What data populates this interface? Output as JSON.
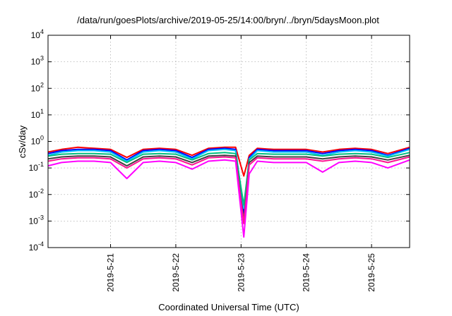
{
  "chart_data": {
    "type": "line",
    "title": "/data/run/goesPlots/archive/2019-05-25/14:00/bryn/../bryn/5daysMoon.plot",
    "xlabel": "Coordinated Universal Time (UTC)",
    "ylabel": "cSv/day",
    "yscale": "log",
    "ylim": [
      0.0001,
      10000
    ],
    "xlim": [
      "2019-05-20 01:00",
      "2019-05-25 14:00"
    ],
    "grid": true,
    "y_ticks": [
      {
        "base": "10",
        "exp": "-4"
      },
      {
        "base": "10",
        "exp": "-3"
      },
      {
        "base": "10",
        "exp": "-2"
      },
      {
        "base": "10",
        "exp": "-1"
      },
      {
        "base": "10",
        "exp": "0"
      },
      {
        "base": "10",
        "exp": "1"
      },
      {
        "base": "10",
        "exp": "2"
      },
      {
        "base": "10",
        "exp": "3"
      },
      {
        "base": "10",
        "exp": "4"
      }
    ],
    "x_ticks": [
      "2019-5-21",
      "2019-5-22",
      "2019-5-23",
      "2019-5-24",
      "2019-5-25"
    ],
    "x": [
      "2019-05-20 01:00",
      "2019-05-20 06:00",
      "2019-05-20 12:00",
      "2019-05-20 18:00",
      "2019-05-21 00:00",
      "2019-05-21 06:00",
      "2019-05-21 12:00",
      "2019-05-21 18:00",
      "2019-05-22 00:00",
      "2019-05-22 06:00",
      "2019-05-22 12:00",
      "2019-05-22 18:00",
      "2019-05-22 22:00",
      "2019-05-23 01:00",
      "2019-05-23 03:00",
      "2019-05-23 06:00",
      "2019-05-23 12:00",
      "2019-05-23 18:00",
      "2019-05-24 00:00",
      "2019-05-24 06:00",
      "2019-05-24 12:00",
      "2019-05-24 18:00",
      "2019-05-25 00:00",
      "2019-05-25 06:00",
      "2019-05-25 14:00"
    ],
    "series": [
      {
        "color": "#ff0000",
        "values": [
          0.4,
          0.5,
          0.6,
          0.55,
          0.5,
          0.25,
          0.5,
          0.55,
          0.5,
          0.3,
          0.55,
          0.6,
          0.6,
          0.05,
          0.3,
          0.55,
          0.5,
          0.5,
          0.5,
          0.4,
          0.5,
          0.55,
          0.5,
          0.35,
          0.6
        ]
      },
      {
        "color": "#0000ff",
        "values": [
          0.35,
          0.45,
          0.5,
          0.5,
          0.45,
          0.2,
          0.45,
          0.5,
          0.45,
          0.25,
          0.5,
          0.55,
          0.5,
          0.002,
          0.25,
          0.5,
          0.45,
          0.45,
          0.45,
          0.35,
          0.45,
          0.5,
          0.45,
          0.3,
          0.55
        ]
      },
      {
        "color": "#00bfff",
        "values": [
          0.3,
          0.4,
          0.45,
          0.45,
          0.4,
          0.18,
          0.4,
          0.45,
          0.4,
          0.22,
          0.45,
          0.5,
          0.45,
          0.003,
          0.22,
          0.45,
          0.4,
          0.4,
          0.4,
          0.3,
          0.4,
          0.45,
          0.4,
          0.28,
          0.5
        ]
      },
      {
        "color": "#00c080",
        "values": [
          0.28,
          0.33,
          0.35,
          0.35,
          0.33,
          0.16,
          0.33,
          0.35,
          0.33,
          0.2,
          0.35,
          0.38,
          0.35,
          0.004,
          0.2,
          0.35,
          0.33,
          0.33,
          0.33,
          0.28,
          0.33,
          0.35,
          0.33,
          0.25,
          0.38
        ]
      },
      {
        "color": "#404040",
        "values": [
          0.22,
          0.26,
          0.28,
          0.28,
          0.26,
          0.12,
          0.26,
          0.28,
          0.26,
          0.16,
          0.28,
          0.3,
          0.28,
          0.001,
          0.16,
          0.28,
          0.26,
          0.26,
          0.26,
          0.22,
          0.26,
          0.28,
          0.26,
          0.2,
          0.3
        ]
      },
      {
        "color": "#ff1493",
        "values": [
          0.18,
          0.22,
          0.24,
          0.24,
          0.22,
          0.1,
          0.22,
          0.24,
          0.22,
          0.13,
          0.24,
          0.26,
          0.24,
          0.0008,
          0.13,
          0.24,
          0.22,
          0.22,
          0.22,
          0.18,
          0.22,
          0.24,
          0.22,
          0.16,
          0.26
        ]
      },
      {
        "color": "#ff00ff",
        "values": [
          0.12,
          0.16,
          0.18,
          0.18,
          0.16,
          0.04,
          0.16,
          0.18,
          0.16,
          0.09,
          0.18,
          0.2,
          0.18,
          0.00025,
          0.06,
          0.18,
          0.16,
          0.16,
          0.16,
          0.07,
          0.16,
          0.18,
          0.16,
          0.1,
          0.2
        ]
      }
    ]
  }
}
